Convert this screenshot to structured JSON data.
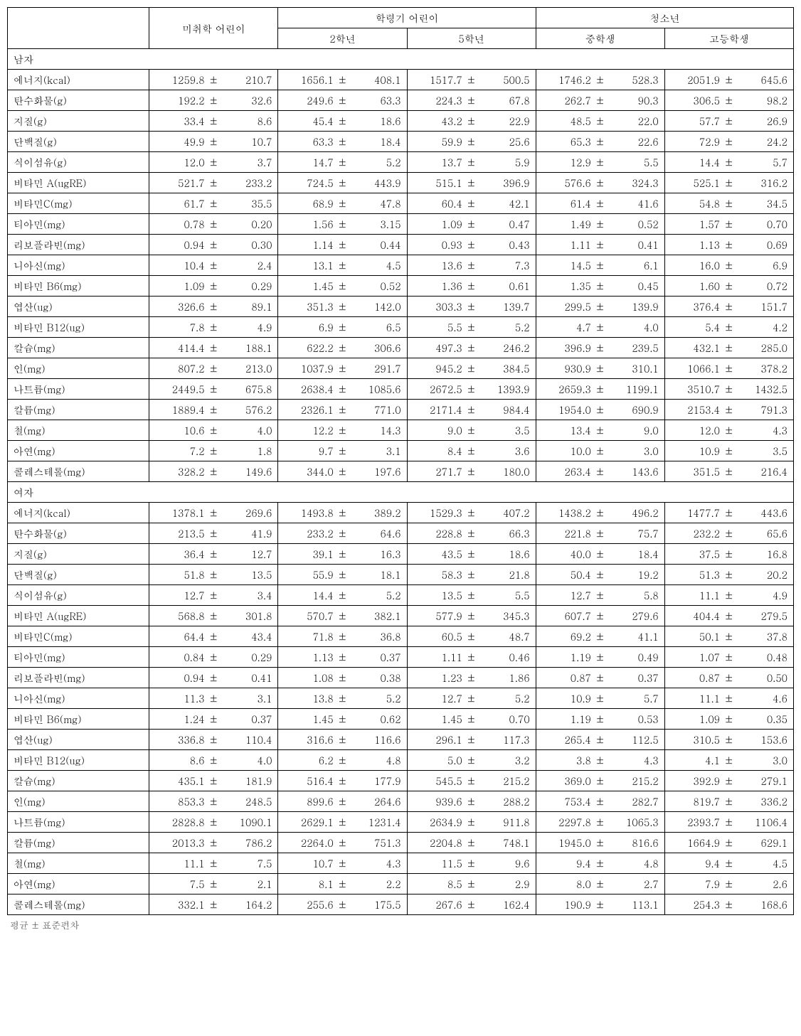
{
  "headers": {
    "group1": "미취학 어린이",
    "group2": "학령기 어린이",
    "group2a": "2학년",
    "group2b": "5학년",
    "group3": "청소년",
    "group3a": "중학생",
    "group3b": "고등학생"
  },
  "sections": [
    {
      "title": "남자",
      "rows": [
        {
          "label": "에너지(kcal)",
          "vals": [
            [
              "1259.8",
              "210.7"
            ],
            [
              "1656.1",
              "408.1"
            ],
            [
              "1517.7",
              "500.5"
            ],
            [
              "1746.2",
              "528.3"
            ],
            [
              "2051.9",
              "645.6"
            ]
          ]
        },
        {
          "label": "탄수화물(g)",
          "vals": [
            [
              "192.2",
              "32.6"
            ],
            [
              "249.6",
              "63.3"
            ],
            [
              "224.3",
              "67.8"
            ],
            [
              "262.7",
              "90.3"
            ],
            [
              "306.5",
              "98.2"
            ]
          ]
        },
        {
          "label": "지질(g)",
          "vals": [
            [
              "33.4",
              "8.6"
            ],
            [
              "45.4",
              "18.6"
            ],
            [
              "43.2",
              "22.9"
            ],
            [
              "48.5",
              "22.0"
            ],
            [
              "57.7",
              "26.9"
            ]
          ]
        },
        {
          "label": "단백질(g)",
          "vals": [
            [
              "49.9",
              "10.7"
            ],
            [
              "63.3",
              "18.4"
            ],
            [
              "59.9",
              "25.6"
            ],
            [
              "65.3",
              "22.6"
            ],
            [
              "72.9",
              "24.2"
            ]
          ]
        },
        {
          "label": "식이섬유(g)",
          "vals": [
            [
              "12.0",
              "3.7"
            ],
            [
              "14.7",
              "5.2"
            ],
            [
              "13.7",
              "5.9"
            ],
            [
              "12.9",
              "5.5"
            ],
            [
              "14.4",
              "5.7"
            ]
          ]
        },
        {
          "label": "비타민 A(ugRE)",
          "vals": [
            [
              "521.7",
              "233.2"
            ],
            [
              "724.5",
              "443.9"
            ],
            [
              "515.1",
              "396.9"
            ],
            [
              "576.6",
              "324.3"
            ],
            [
              "525.1",
              "316.2"
            ]
          ]
        },
        {
          "label": "비타민C(mg)",
          "vals": [
            [
              "61.7",
              "35.5"
            ],
            [
              "68.9",
              "47.8"
            ],
            [
              "60.4",
              "42.1"
            ],
            [
              "61.4",
              "41.6"
            ],
            [
              "54.8",
              "34.5"
            ]
          ]
        },
        {
          "label": "티아민(mg)",
          "vals": [
            [
              "0.78",
              "0.20"
            ],
            [
              "1.56",
              "3.15"
            ],
            [
              "1.09",
              "0.47"
            ],
            [
              "1.49",
              "0.52"
            ],
            [
              "1.57",
              "0.70"
            ]
          ]
        },
        {
          "label": "리보플라빈(mg)",
          "vals": [
            [
              "0.94",
              "0.30"
            ],
            [
              "1.14",
              "0.44"
            ],
            [
              "0.93",
              "0.43"
            ],
            [
              "1.11",
              "0.41"
            ],
            [
              "1.13",
              "0.69"
            ]
          ]
        },
        {
          "label": "니아신(mg)",
          "vals": [
            [
              "10.4",
              "2.4"
            ],
            [
              "13.1",
              "4.5"
            ],
            [
              "13.6",
              "7.3"
            ],
            [
              "14.5",
              "6.1"
            ],
            [
              "16.0",
              "6.9"
            ]
          ]
        },
        {
          "label": "비타민 B6(mg)",
          "vals": [
            [
              "1.09",
              "0.29"
            ],
            [
              "1.45",
              "0.52"
            ],
            [
              "1.36",
              "0.61"
            ],
            [
              "1.35",
              "0.45"
            ],
            [
              "1.60",
              "0.72"
            ]
          ]
        },
        {
          "label": "엽산(ug)",
          "vals": [
            [
              "326.6",
              "89.1"
            ],
            [
              "351.3",
              "142.0"
            ],
            [
              "303.3",
              "139.7"
            ],
            [
              "299.5",
              "139.9"
            ],
            [
              "376.4",
              "151.7"
            ]
          ]
        },
        {
          "label": "비타민 B12(ug)",
          "vals": [
            [
              "7.8",
              "4.9"
            ],
            [
              "6.9",
              "6.5"
            ],
            [
              "5.5",
              "5.2"
            ],
            [
              "4.7",
              "4.0"
            ],
            [
              "5.4",
              "4.2"
            ]
          ]
        },
        {
          "label": "칼슘(mg)",
          "vals": [
            [
              "414.4",
              "188.1"
            ],
            [
              "622.2",
              "306.6"
            ],
            [
              "497.3",
              "246.2"
            ],
            [
              "396.9",
              "239.5"
            ],
            [
              "432.1",
              "285.0"
            ]
          ]
        },
        {
          "label": "인(mg)",
          "vals": [
            [
              "807.2",
              "213.0"
            ],
            [
              "1037.9",
              "291.7"
            ],
            [
              "945.2",
              "384.5"
            ],
            [
              "930.9",
              "310.1"
            ],
            [
              "1066.1",
              "378.2"
            ]
          ]
        },
        {
          "label": "나트륨(mg)",
          "vals": [
            [
              "2449.5",
              "675.8"
            ],
            [
              "2638.4",
              "1085.6"
            ],
            [
              "2672.5",
              "1393.9"
            ],
            [
              "2659.3",
              "1199.1"
            ],
            [
              "3510.7",
              "1432.5"
            ]
          ]
        },
        {
          "label": "칼륨(mg)",
          "vals": [
            [
              "1889.4",
              "576.2"
            ],
            [
              "2326.1",
              "771.0"
            ],
            [
              "2171.4",
              "984.4"
            ],
            [
              "1954.0",
              "690.9"
            ],
            [
              "2153.4",
              "791.3"
            ]
          ]
        },
        {
          "label": "철(mg)",
          "vals": [
            [
              "10.6",
              "4.0"
            ],
            [
              "12.2",
              "14.3"
            ],
            [
              "9.0",
              "3.5"
            ],
            [
              "13.4",
              "9.0"
            ],
            [
              "12.0",
              "4.3"
            ]
          ]
        },
        {
          "label": "아연(mg)",
          "vals": [
            [
              "7.2",
              "1.8"
            ],
            [
              "9.7",
              "3.1"
            ],
            [
              "8.4",
              "3.6"
            ],
            [
              "10.0",
              "3.0"
            ],
            [
              "10.9",
              "3.5"
            ]
          ]
        },
        {
          "label": "콜레스테롤(mg)",
          "vals": [
            [
              "328.2",
              "149.6"
            ],
            [
              "344.0",
              "197.6"
            ],
            [
              "271.7",
              "180.0"
            ],
            [
              "263.4",
              "143.6"
            ],
            [
              "351.5",
              "216.4"
            ]
          ]
        }
      ]
    },
    {
      "title": "여자",
      "rows": [
        {
          "label": "에너지(kcal)",
          "vals": [
            [
              "1378.1",
              "269.6"
            ],
            [
              "1493.8",
              "389.2"
            ],
            [
              "1529.3",
              "407.2"
            ],
            [
              "1438.2",
              "496.2"
            ],
            [
              "1477.7",
              "443.6"
            ]
          ]
        },
        {
          "label": "탄수화물(g)",
          "vals": [
            [
              "213.5",
              "41.9"
            ],
            [
              "233.2",
              "64.6"
            ],
            [
              "228.8",
              "66.3"
            ],
            [
              "221.8",
              "75.7"
            ],
            [
              "232.2",
              "65.6"
            ]
          ]
        },
        {
          "label": "지질(g)",
          "vals": [
            [
              "36.4",
              "12.7"
            ],
            [
              "39.1",
              "16.3"
            ],
            [
              "43.5",
              "18.6"
            ],
            [
              "40.0",
              "18.4"
            ],
            [
              "37.5",
              "16.8"
            ]
          ]
        },
        {
          "label": "단백질(g)",
          "vals": [
            [
              "51.8",
              "13.5"
            ],
            [
              "55.9",
              "18.1"
            ],
            [
              "58.3",
              "21.8"
            ],
            [
              "50.4",
              "19.2"
            ],
            [
              "51.3",
              "20.2"
            ]
          ]
        },
        {
          "label": "식이섬유(g)",
          "vals": [
            [
              "12.7",
              "3.4"
            ],
            [
              "14.4",
              "5.2"
            ],
            [
              "13.5",
              "5.5"
            ],
            [
              "12.7",
              "5.8"
            ],
            [
              "11.1",
              "4.9"
            ]
          ]
        },
        {
          "label": "비타민 A(ugRE)",
          "vals": [
            [
              "568.8",
              "301.8"
            ],
            [
              "570.7",
              "382.1"
            ],
            [
              "577.9",
              "345.3"
            ],
            [
              "607.7",
              "279.6"
            ],
            [
              "404.4",
              "279.5"
            ]
          ]
        },
        {
          "label": "비타민C(mg)",
          "vals": [
            [
              "64.4",
              "43.4"
            ],
            [
              "71.8",
              "36.8"
            ],
            [
              "60.5",
              "48.7"
            ],
            [
              "69.2",
              "41.1"
            ],
            [
              "50.1",
              "37.8"
            ]
          ]
        },
        {
          "label": "티아민(mg)",
          "vals": [
            [
              "0.84",
              "0.29"
            ],
            [
              "1.13",
              "0.37"
            ],
            [
              "1.11",
              "0.46"
            ],
            [
              "1.19",
              "0.49"
            ],
            [
              "1.07",
              "0.48"
            ]
          ]
        },
        {
          "label": "리보플라빈(mg)",
          "vals": [
            [
              "0.94",
              "0.41"
            ],
            [
              "1.08",
              "0.38"
            ],
            [
              "1.23",
              "1.86"
            ],
            [
              "0.87",
              "0.37"
            ],
            [
              "0.87",
              "0.50"
            ]
          ]
        },
        {
          "label": "니아신(mg)",
          "vals": [
            [
              "11.3",
              "3.1"
            ],
            [
              "13.8",
              "5.2"
            ],
            [
              "12.7",
              "5.2"
            ],
            [
              "10.9",
              "5.7"
            ],
            [
              "11.1",
              "4.6"
            ]
          ]
        },
        {
          "label": "비타민 B6(mg)",
          "vals": [
            [
              "1.24",
              "0.37"
            ],
            [
              "1.45",
              "0.62"
            ],
            [
              "1.45",
              "0.70"
            ],
            [
              "1.19",
              "0.53"
            ],
            [
              "1.09",
              "0.35"
            ]
          ]
        },
        {
          "label": "엽산(ug)",
          "vals": [
            [
              "336.8",
              "110.4"
            ],
            [
              "316.6",
              "116.6"
            ],
            [
              "296.1",
              "117.3"
            ],
            [
              "265.4",
              "112.5"
            ],
            [
              "310.5",
              "153.6"
            ]
          ]
        },
        {
          "label": "비타민 B12(ug)",
          "vals": [
            [
              "8.6",
              "4.0"
            ],
            [
              "6.2",
              "4.8"
            ],
            [
              "5.0",
              "3.2"
            ],
            [
              "3.8",
              "4.3"
            ],
            [
              "4.1",
              "3.0"
            ]
          ]
        },
        {
          "label": "칼슘(mg)",
          "vals": [
            [
              "435.1",
              "181.9"
            ],
            [
              "516.4",
              "177.9"
            ],
            [
              "545.5",
              "215.2"
            ],
            [
              "369.0",
              "215.2"
            ],
            [
              "392.9",
              "279.1"
            ]
          ]
        },
        {
          "label": "인(mg)",
          "vals": [
            [
              "853.3",
              "248.5"
            ],
            [
              "899.6",
              "264.6"
            ],
            [
              "939.6",
              "288.2"
            ],
            [
              "753.4",
              "282.7"
            ],
            [
              "819.7",
              "336.2"
            ]
          ]
        },
        {
          "label": "나트륨(mg)",
          "vals": [
            [
              "2828.8",
              "1090.1"
            ],
            [
              "2629.1",
              "1231.4"
            ],
            [
              "2634.9",
              "911.8"
            ],
            [
              "2297.8",
              "1065.3"
            ],
            [
              "2393.7",
              "1106.4"
            ]
          ]
        },
        {
          "label": "칼륨(mg)",
          "vals": [
            [
              "2013.3",
              "786.2"
            ],
            [
              "2264.0",
              "751.3"
            ],
            [
              "2204.8",
              "748.1"
            ],
            [
              "1945.0",
              "816.6"
            ],
            [
              "1664.9",
              "629.1"
            ]
          ]
        },
        {
          "label": "철(mg)",
          "vals": [
            [
              "11.1",
              "7.5"
            ],
            [
              "10.7",
              "4.3"
            ],
            [
              "11.5",
              "9.6"
            ],
            [
              "9.4",
              "4.8"
            ],
            [
              "9.4",
              "4.5"
            ]
          ]
        },
        {
          "label": "아연(mg)",
          "vals": [
            [
              "7.5",
              "2.1"
            ],
            [
              "8.1",
              "2.2"
            ],
            [
              "8.5",
              "2.9"
            ],
            [
              "8.0",
              "2.7"
            ],
            [
              "7.9",
              "2.6"
            ]
          ]
        },
        {
          "label": "콜레스테롤(mg)",
          "vals": [
            [
              "332.1",
              "164.2"
            ],
            [
              "255.6",
              "175.5"
            ],
            [
              "267.6",
              "162.4"
            ],
            [
              "190.9",
              "113.1"
            ],
            [
              "254.3",
              "168.6"
            ]
          ]
        }
      ]
    }
  ],
  "footnote": "평균 ± 표준편차",
  "pm_symbol": "±"
}
